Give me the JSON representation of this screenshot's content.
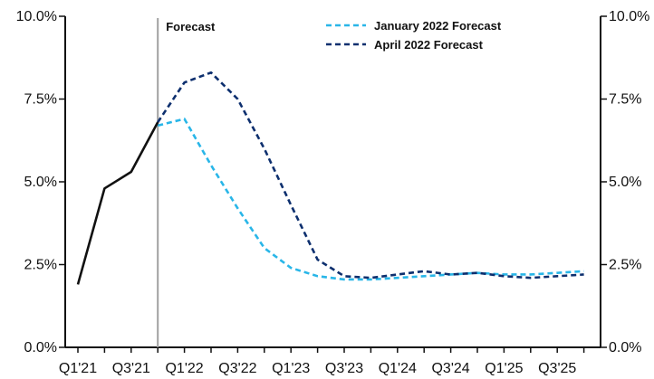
{
  "chart_data": {
    "type": "line",
    "categories": [
      "Q1'21",
      "Q2'21",
      "Q3'21",
      "Q4'21",
      "Q1'22",
      "Q2'22",
      "Q3'22",
      "Q4'22",
      "Q1'23",
      "Q2'23",
      "Q3'23",
      "Q4'23",
      "Q1'24",
      "Q2'24",
      "Q3'24",
      "Q4'24",
      "Q1'25",
      "Q2'25",
      "Q3'25",
      "Q4'25"
    ],
    "x_tick_labels": [
      "Q1'21",
      "Q3'21",
      "Q1'22",
      "Q3'22",
      "Q1'23",
      "Q3'23",
      "Q1'24",
      "Q3'24",
      "Q1'25",
      "Q3'25"
    ],
    "y_tick_labels": [
      "0.0%",
      "2.5%",
      "5.0%",
      "7.5%",
      "10.0%"
    ],
    "y_ticks": [
      0,
      2.5,
      5.0,
      7.5,
      10.0
    ],
    "ylim": [
      0,
      10
    ],
    "forecast_marker": {
      "label": "Forecast",
      "x": 3.0
    },
    "actual": {
      "x": [
        0,
        1,
        2,
        3
      ],
      "values": [
        1.9,
        4.8,
        5.3,
        6.8
      ]
    },
    "series": [
      {
        "name": "January 2022 Forecast",
        "color": "#29b6e8",
        "style": "dashed",
        "x": [
          3,
          4,
          5,
          6,
          7,
          8,
          9,
          10,
          11,
          12,
          13,
          14,
          15,
          16,
          17,
          18,
          19
        ],
        "values": [
          6.7,
          6.9,
          5.5,
          4.2,
          3.0,
          2.4,
          2.15,
          2.05,
          2.05,
          2.1,
          2.15,
          2.2,
          2.25,
          2.2,
          2.2,
          2.25,
          2.3
        ]
      },
      {
        "name": "April 2022 Forecast",
        "color": "#0d2f6e",
        "style": "dashed",
        "x": [
          3,
          4,
          5,
          6,
          7,
          8,
          9,
          10,
          11,
          12,
          13,
          14,
          15,
          16,
          17,
          18,
          19
        ],
        "values": [
          6.8,
          8.0,
          8.3,
          7.5,
          6.0,
          4.3,
          2.65,
          2.15,
          2.1,
          2.2,
          2.3,
          2.2,
          2.25,
          2.15,
          2.1,
          2.15,
          2.2
        ]
      }
    ],
    "actual_color": "#111111",
    "grid": false,
    "legend_position": "top-center"
  }
}
